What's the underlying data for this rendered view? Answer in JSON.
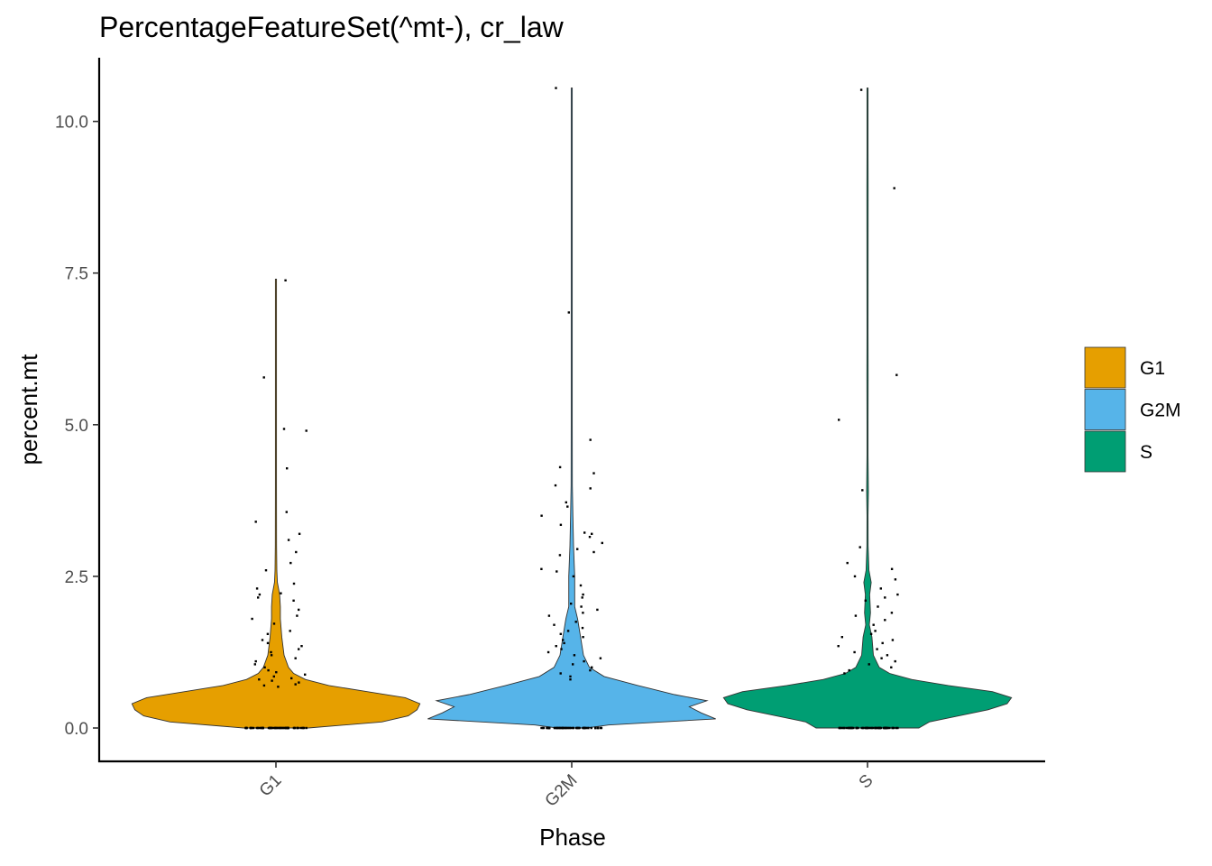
{
  "chart_data": {
    "type": "violin",
    "title": "PercentageFeatureSet(^mt-), cr_law",
    "xlabel": "Phase",
    "ylabel": "percent.mt",
    "categories": [
      "G1",
      "G2M",
      "S"
    ],
    "colors": [
      "#E69F00",
      "#56B4E9",
      "#009E73"
    ],
    "ylim": [
      -0.55,
      11.05
    ],
    "yticks": [
      0.0,
      2.5,
      5.0,
      7.5,
      10.0
    ],
    "ytick_labels": [
      "0.0",
      "2.5",
      "5.0",
      "7.5",
      "10.0"
    ],
    "legend": {
      "position": "right",
      "entries": [
        {
          "label": "G1",
          "color": "#E69F00"
        },
        {
          "label": "G2M",
          "color": "#56B4E9"
        },
        {
          "label": "S",
          "color": "#009E73"
        }
      ]
    },
    "series": [
      {
        "name": "G1",
        "max": 7.4,
        "density": [
          [
            0,
            0.22
          ],
          [
            0.1,
            0.72
          ],
          [
            0.2,
            0.9
          ],
          [
            0.3,
            0.96
          ],
          [
            0.4,
            0.98
          ],
          [
            0.5,
            0.88
          ],
          [
            0.6,
            0.62
          ],
          [
            0.7,
            0.36
          ],
          [
            0.8,
            0.2
          ],
          [
            0.9,
            0.12
          ],
          [
            1.0,
            0.085
          ],
          [
            1.2,
            0.055
          ],
          [
            1.5,
            0.04
          ],
          [
            1.8,
            0.03
          ],
          [
            2.0,
            0.03
          ],
          [
            2.2,
            0.025
          ],
          [
            2.4,
            0.01
          ],
          [
            2.6,
            0.006
          ],
          [
            3.0,
            0.004
          ],
          [
            4.0,
            0.003
          ],
          [
            4.5,
            0.002
          ],
          [
            5.0,
            0.003
          ],
          [
            5.8,
            0.002
          ],
          [
            6.5,
            0.001
          ],
          [
            7.4,
            0.0
          ]
        ],
        "outliers": [
          7.38,
          5.78,
          4.93,
          4.9,
          4.28,
          3.56,
          3.4,
          3.2,
          3.1,
          2.9,
          2.72,
          2.6,
          2.38,
          2.3,
          2.22,
          2.2,
          2.15,
          2.1,
          1.95,
          1.85,
          1.8,
          1.72,
          1.6,
          1.55,
          1.45,
          1.4,
          1.35,
          1.3,
          1.25,
          1.2,
          1.15,
          1.1,
          1.05,
          1.0,
          0.95,
          0.92,
          0.88,
          0.85,
          0.82,
          0.8,
          0.78,
          0.75,
          0.72,
          0.7,
          0.68
        ]
      },
      {
        "name": "G2M",
        "max": 10.55,
        "density": [
          [
            0,
            0.1
          ],
          [
            0.05,
            0.25
          ],
          [
            0.15,
            0.98
          ],
          [
            0.25,
            0.88
          ],
          [
            0.35,
            0.8
          ],
          [
            0.45,
            0.92
          ],
          [
            0.55,
            0.7
          ],
          [
            0.7,
            0.45
          ],
          [
            0.85,
            0.22
          ],
          [
            1.0,
            0.12
          ],
          [
            1.2,
            0.08
          ],
          [
            1.5,
            0.06
          ],
          [
            1.8,
            0.04
          ],
          [
            2.0,
            0.02
          ],
          [
            2.5,
            0.02
          ],
          [
            3.0,
            0.012
          ],
          [
            3.5,
            0.008
          ],
          [
            4.0,
            0.004
          ],
          [
            5.0,
            0.003
          ],
          [
            6.0,
            0.002
          ],
          [
            7.0,
            0.002
          ],
          [
            8.5,
            0.001
          ],
          [
            10.55,
            0.0
          ]
        ],
        "outliers": [
          10.55,
          6.85,
          4.75,
          4.3,
          4.2,
          4.0,
          3.95,
          3.72,
          3.65,
          3.5,
          3.35,
          3.22,
          3.2,
          3.15,
          3.05,
          2.95,
          2.9,
          2.85,
          2.62,
          2.58,
          2.5,
          2.35,
          2.2,
          2.15,
          2.05,
          2.0,
          1.95,
          1.9,
          1.85,
          1.75,
          1.7,
          1.65,
          1.6,
          1.55,
          1.5,
          1.45,
          1.4,
          1.35,
          1.3,
          1.25,
          1.2,
          1.15,
          1.1,
          1.05,
          1.0,
          0.95,
          0.9,
          0.85,
          0.8
        ]
      },
      {
        "name": "S",
        "max": 10.55,
        "density": [
          [
            0,
            0.35
          ],
          [
            0.1,
            0.42
          ],
          [
            0.2,
            0.62
          ],
          [
            0.3,
            0.82
          ],
          [
            0.4,
            0.95
          ],
          [
            0.5,
            0.98
          ],
          [
            0.6,
            0.85
          ],
          [
            0.7,
            0.55
          ],
          [
            0.8,
            0.3
          ],
          [
            0.9,
            0.15
          ],
          [
            1.0,
            0.08
          ],
          [
            1.2,
            0.04
          ],
          [
            1.5,
            0.03
          ],
          [
            1.7,
            0.012
          ],
          [
            1.9,
            0.02
          ],
          [
            2.2,
            0.015
          ],
          [
            2.4,
            0.025
          ],
          [
            2.6,
            0.01
          ],
          [
            3.0,
            0.004
          ],
          [
            3.5,
            0.003
          ],
          [
            3.9,
            0.006
          ],
          [
            4.5,
            0.002
          ],
          [
            5.0,
            0.002
          ],
          [
            5.8,
            0.004
          ],
          [
            6.5,
            0.001
          ],
          [
            8.9,
            0.004
          ],
          [
            9.5,
            0.001
          ],
          [
            10.55,
            0.0
          ]
        ],
        "outliers": [
          10.52,
          8.9,
          5.82,
          5.08,
          3.92,
          2.98,
          2.72,
          2.62,
          2.5,
          2.45,
          2.3,
          2.2,
          2.15,
          2.1,
          2.0,
          1.9,
          1.85,
          1.78,
          1.7,
          1.6,
          1.55,
          1.5,
          1.45,
          1.4,
          1.35,
          1.3,
          1.25,
          1.2,
          1.15,
          1.1,
          1.05,
          1.0,
          0.95,
          0.9
        ]
      }
    ]
  }
}
